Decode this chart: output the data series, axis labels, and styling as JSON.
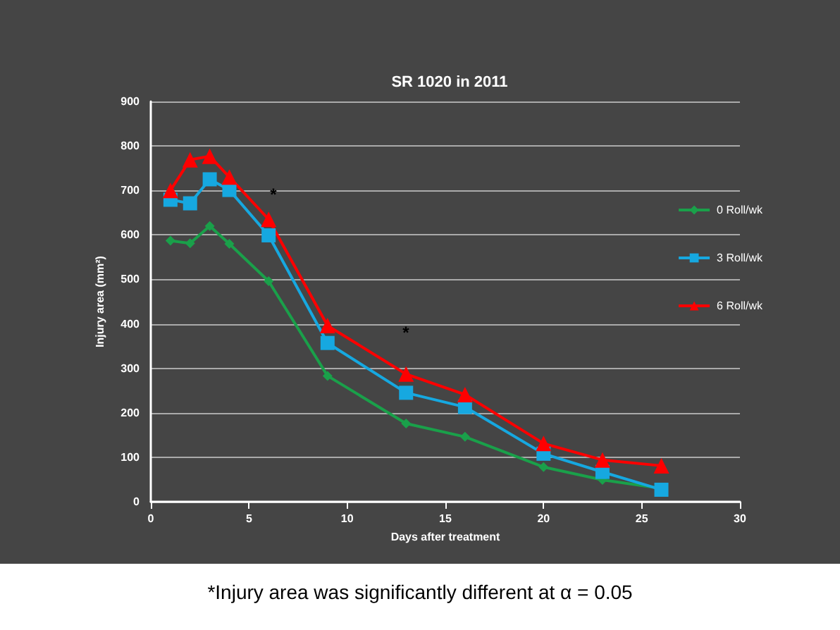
{
  "chart_data": {
    "type": "line",
    "title": "SR 1020 in 2011",
    "xlabel": "Days after treatment",
    "ylabel": "Injury area (mm²)",
    "x": [
      1,
      2,
      3,
      4,
      6,
      9,
      13,
      16,
      20,
      23,
      26
    ],
    "series": [
      {
        "name": "0 Roll/wk",
        "color": "#1aa04a",
        "marker": "diamond",
        "values": [
          587,
          581,
          620,
          580,
          496,
          283,
          176,
          146,
          78,
          49,
          30
        ]
      },
      {
        "name": "3 Roll/wk",
        "color": "#16a8e0",
        "marker": "square",
        "values": [
          679,
          671,
          725,
          701,
          599,
          357,
          245,
          213,
          108,
          67,
          27
        ]
      },
      {
        "name": "6 Roll/wk",
        "color": "#ff0000",
        "marker": "triangle",
        "values": [
          700,
          769,
          777,
          730,
          635,
          396,
          287,
          241,
          131,
          94,
          81
        ]
      }
    ],
    "xlim": [
      0,
      30
    ],
    "xticks": [
      0,
      5,
      10,
      15,
      20,
      25,
      30
    ],
    "ylim": [
      0,
      900
    ],
    "yticks": [
      0,
      100,
      200,
      300,
      400,
      500,
      600,
      700,
      800,
      900
    ],
    "grid": "y",
    "legend": "right",
    "annotations": [
      "*",
      "*",
      "*Injury area was significantly different at α = 0.05"
    ]
  }
}
